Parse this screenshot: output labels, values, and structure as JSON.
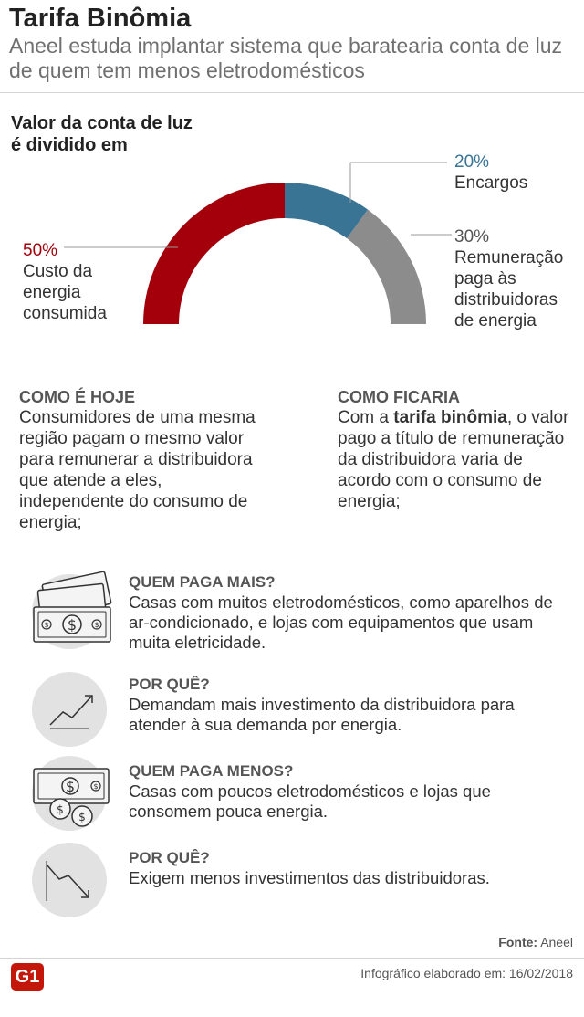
{
  "header": {
    "title": "Tarifa Binômia",
    "subtitle": "Aneel estuda implantar sistema que baratearia conta de luz de quem tem menos eletrodomésticos"
  },
  "chart_data": {
    "type": "pie",
    "title": "Valor da conta de luz é dividido em",
    "slices": [
      {
        "label": "Custo da energia consumida",
        "value": 50,
        "pct_label": "50%",
        "color": "#a3000c"
      },
      {
        "label": "Encargos",
        "value": 20,
        "pct_label": "20%",
        "color": "#3a7494"
      },
      {
        "label": "Remuneração paga às distribuidoras de energia",
        "value": 30,
        "pct_label": "30%",
        "color": "#8c8c8c"
      }
    ]
  },
  "labels": {
    "consumo_pct": "50%",
    "consumo_line1": "Custo da",
    "consumo_line2": "energia",
    "consumo_line3": "consumida",
    "encargos_pct": "20%",
    "encargos_text": "Encargos",
    "remun_pct": "30%",
    "remun_line1": "Remuneração",
    "remun_line2": "paga às",
    "remun_line3": "distribuidoras",
    "remun_line4": "de energia"
  },
  "today": {
    "title": "COMO É HOJE",
    "body": "Consumidores de uma mesma região pagam o mesmo valor para remunerar a distribuidora que atende a eles, independente do consumo de energia;"
  },
  "future": {
    "title": "COMO FICARIA",
    "body_pre": "Com a ",
    "body_bold": "tarifa binômia",
    "body_post": ", o valor pago a título de remuneração da distribuidora varia de acordo com o consumo de energia;"
  },
  "rows": [
    {
      "heading": "QUEM PAGA MAIS?",
      "text": "Casas com muitos eletrodomésticos, como aparelhos de ar-condicionado, e lojas com equipamentos que usam muita eletricidade.",
      "icon": "money-bills-icon"
    },
    {
      "heading": "POR QUÊ?",
      "text": "Demandam mais investimento da distribuidora para atender à sua demanda por energia.",
      "icon": "trend-up-icon"
    },
    {
      "heading": "QUEM PAGA MENOS?",
      "text": "Casas com poucos eletrodomésticos e lojas que consomem pouca energia.",
      "icon": "money-coins-icon"
    },
    {
      "heading": "POR QUÊ?",
      "text": "Exigem menos investimentos das distribuidoras.",
      "icon": "trend-down-icon"
    }
  ],
  "footer": {
    "source_label": "Fonte:",
    "source_value": "Aneel",
    "note": "Infográfico elaborado em: 16/02/2018",
    "logo": "G1"
  },
  "colors": {
    "dark_red": "#a3000c",
    "blue": "#3a7494",
    "gray": "#8c8c8c",
    "brand": "#c4170c"
  }
}
